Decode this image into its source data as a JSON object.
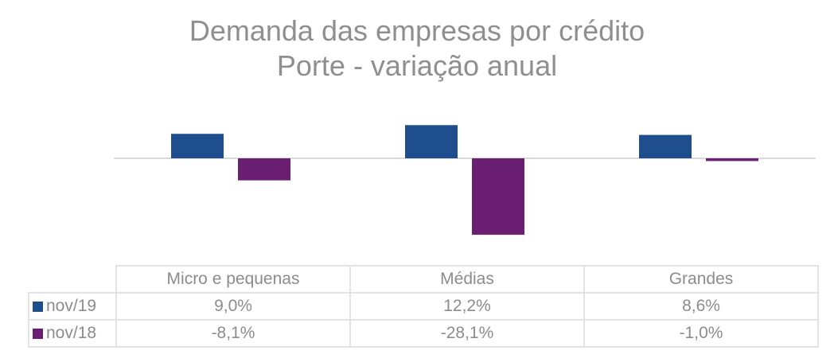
{
  "chart_data": {
    "type": "bar",
    "title": "Demanda das empresas por crédito",
    "subtitle": "Porte - variação anual",
    "categories": [
      "Micro e pequenas",
      "Médias",
      "Grandes"
    ],
    "series": [
      {
        "name": "nov/19",
        "color": "#1f4e8f",
        "values": [
          9.0,
          12.2,
          8.6
        ],
        "labels": [
          "9,0%",
          "12,2%",
          "8,6%"
        ]
      },
      {
        "name": "nov/18",
        "color": "#6b1f73",
        "values": [
          -8.1,
          -28.1,
          -1.0
        ],
        "labels": [
          "-8,1%",
          "-28,1%",
          "-1,0%"
        ]
      }
    ],
    "legend": "data-table",
    "grid": false
  }
}
